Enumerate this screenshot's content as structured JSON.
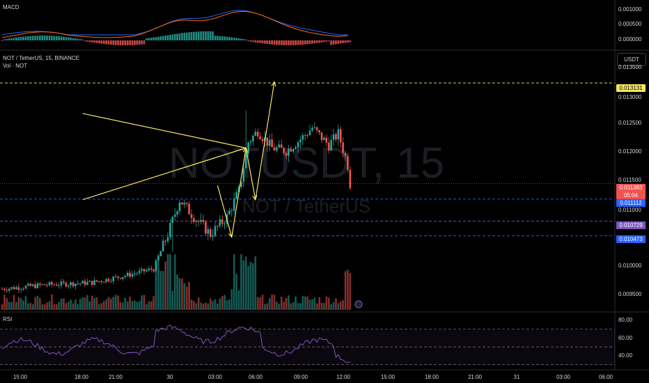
{
  "header": {
    "symbol_line": "NOT / TetherUS, 15, BINANCE",
    "volume_line": "Vol · NOT",
    "currency_button": "USDT",
    "watermark_ticker": "NOTUSDT, 15",
    "watermark_pair": "NOT / TetherUS"
  },
  "macd_panel": {
    "title": "MACD",
    "ticks": [
      "0.001000",
      "0.000500",
      "0.000000"
    ]
  },
  "rsi_panel": {
    "title": "RSI",
    "ticks": [
      "80.00",
      "60.00",
      "40.00"
    ]
  },
  "price_axis": {
    "ticks": [
      "0.013500",
      "0.013000",
      "0.012500",
      "0.012000",
      "0.011500",
      "0.011000",
      "0.010000",
      "0.009500"
    ],
    "labels": {
      "target": "0.013131",
      "current": "0.011383",
      "countdown": "05:04",
      "level_1": "0.011112",
      "level_2": "0.010729",
      "level_3": "0.010473"
    }
  },
  "time_axis": {
    "ticks": [
      "15:00",
      "18:00",
      "21:00",
      "30",
      "03:00",
      "06:00",
      "09:00",
      "12:00",
      "15:00",
      "18:00",
      "21:00",
      "31",
      "03:00",
      "06:00"
    ]
  },
  "colors": {
    "up": "#26a69a",
    "down": "#ef5350",
    "annotation": "#f5e663",
    "target_label_bg": "#f5e663",
    "current_label_bg": "#ef5350",
    "level_1_bg": "#2962ff",
    "level_2_bg": "#7e57c2",
    "level_3_bg": "#2962ff",
    "macd_line": "#2962ff",
    "signal_line": "#ff6d00",
    "rsi_line": "#7e57c2"
  },
  "chart_data": {
    "type": "candlestick",
    "symbol": "NOT / TetherUS",
    "interval": "15",
    "exchange": "BINANCE",
    "price_range": [
      0.0092,
      0.0137
    ],
    "current_price": 0.011383,
    "horizontal_levels": [
      0.013131,
      0.011112,
      0.010729,
      0.010473
    ],
    "triangle_upper": [
      [
        "29 22:45",
        0.0126
      ],
      [
        "30 16:00",
        0.012
      ]
    ],
    "triangle_lower": [
      [
        "29 22:45",
        0.0111
      ],
      [
        "30 16:00",
        0.012
      ]
    ],
    "projection_path": [
      [
        "30 13:00",
        0.01135
      ],
      [
        "30 14:30",
        0.01045
      ],
      [
        "30 16:00",
        0.012
      ],
      [
        "30 17:00",
        0.0111
      ],
      [
        "30 19:00",
        0.01315
      ]
    ],
    "candle_count": 148,
    "rsi_range": [
      30,
      90
    ],
    "rsi_bands": [
      70,
      50,
      30
    ]
  }
}
